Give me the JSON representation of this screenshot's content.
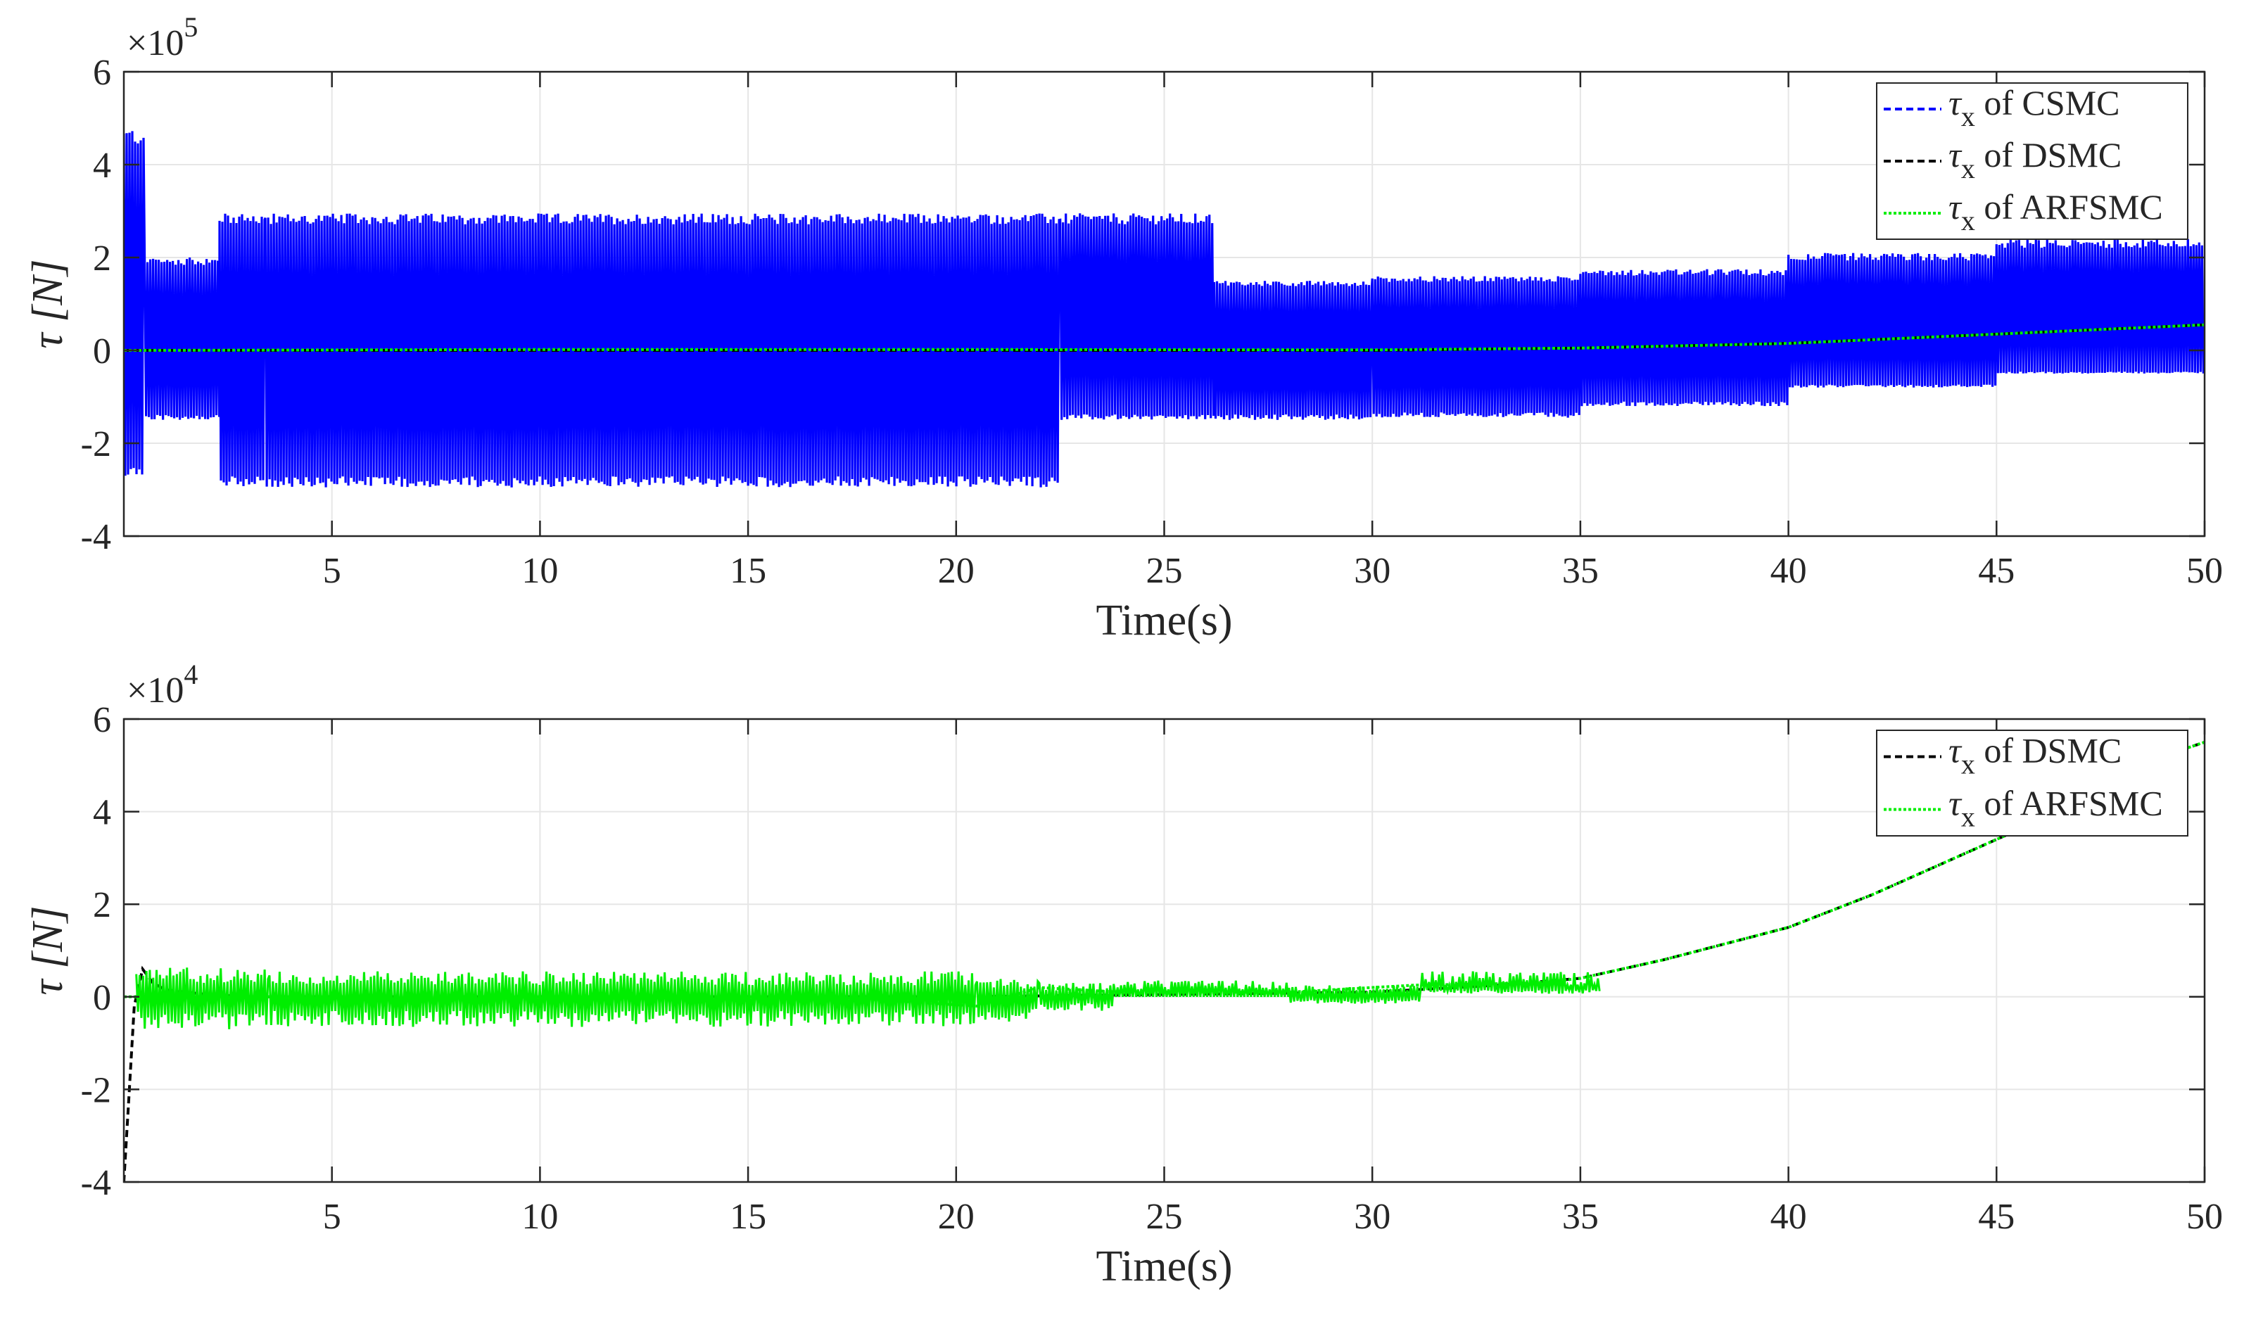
{
  "colors": {
    "csmc": "#0000ff",
    "dsmc": "#000000",
    "arfsmc": "#00ee00"
  },
  "chart_data": [
    {
      "type": "line",
      "xlabel": "Time(s)",
      "ylabel": "τ [N]",
      "y_exponent_label": "×10",
      "y_exponent_power": "5",
      "xlim": [
        0,
        50
      ],
      "ylim": [
        -4,
        6
      ],
      "x_ticks": [
        5,
        10,
        15,
        20,
        25,
        30,
        35,
        40,
        45,
        50
      ],
      "y_ticks": [
        -4,
        -2,
        0,
        2,
        4,
        6
      ],
      "grid": true,
      "legend_position": "top-right",
      "series": [
        {
          "name_symbol": "τ",
          "name_sub": "x",
          "name_rest": " of CSMC",
          "style": "dashed",
          "color": "#0000ff",
          "description": "high-amplitude switching signal",
          "bands": [
            {
              "x": [
                0,
                0.5
              ],
              "low": -2.7,
              "high": 4.8
            },
            {
              "x": [
                0.5,
                2.3
              ],
              "low": -1.5,
              "high": 2.0
            },
            {
              "x": [
                2.3,
                3.4
              ],
              "low": -2.95,
              "high": 2.95
            },
            {
              "x": [
                3.4,
                22.5
              ],
              "low": -2.95,
              "high": 2.95
            },
            {
              "x": [
                22.5,
                26.2
              ],
              "low": -1.5,
              "high": 2.95
            },
            {
              "x": [
                26.2,
                30
              ],
              "low": -1.5,
              "high": 1.5
            },
            {
              "x": [
                30,
                35
              ],
              "low": -1.45,
              "high": 1.6
            },
            {
              "x": [
                35,
                40
              ],
              "low": -1.2,
              "high": 1.75
            },
            {
              "x": [
                40,
                45
              ],
              "low": -0.8,
              "high": 2.1
            },
            {
              "x": [
                45,
                50
              ],
              "low": -0.5,
              "high": 2.4
            }
          ]
        },
        {
          "name_symbol": "τ",
          "name_sub": "x",
          "name_rest": " of DSMC",
          "style": "dashed",
          "color": "#000000",
          "x": [
            0,
            10,
            20,
            30,
            35,
            40,
            45,
            50
          ],
          "y": [
            0,
            0,
            0,
            0,
            0.05,
            0.15,
            0.35,
            0.55
          ]
        },
        {
          "name_symbol": "τ",
          "name_sub": "x",
          "name_rest": " of ARFSMC",
          "style": "dotted",
          "color": "#00ee00",
          "x": [
            0,
            10,
            20,
            30,
            35,
            40,
            45,
            50
          ],
          "y": [
            0,
            0.02,
            0.02,
            0.01,
            0.05,
            0.15,
            0.35,
            0.55
          ]
        }
      ]
    },
    {
      "type": "line",
      "xlabel": "Time(s)",
      "ylabel": "τ [N]",
      "y_exponent_label": "×10",
      "y_exponent_power": "4",
      "xlim": [
        0,
        50
      ],
      "ylim": [
        -4,
        6
      ],
      "x_ticks": [
        5,
        10,
        15,
        20,
        25,
        30,
        35,
        40,
        45,
        50
      ],
      "y_ticks": [
        -4,
        -2,
        0,
        2,
        4,
        6
      ],
      "grid": true,
      "legend_position": "top-right",
      "series": [
        {
          "name_symbol": "τ",
          "name_sub": "x",
          "name_rest": " of DSMC",
          "style": "dashed",
          "color": "#000000",
          "x": [
            0.0,
            0.1,
            0.25,
            0.45,
            0.7,
            1.0,
            1.5,
            2.0,
            3.0,
            5,
            10,
            20,
            30,
            33,
            35,
            37,
            40,
            42,
            44,
            46,
            48,
            49,
            50
          ],
          "y": [
            -4.0,
            -2.5,
            -0.2,
            0.6,
            0.3,
            0.15,
            0.1,
            0.05,
            0.0,
            0.0,
            0.0,
            0.0,
            0.1,
            0.25,
            0.4,
            0.8,
            1.5,
            2.2,
            3.0,
            3.8,
            4.7,
            5.2,
            5.5
          ]
        },
        {
          "name_symbol": "τ",
          "name_sub": "x",
          "name_rest": " of ARFSMC",
          "style": "dotted",
          "color": "#00ee00",
          "x": [
            0,
            3,
            10,
            17,
            20.5,
            22,
            24,
            28,
            31,
            34,
            35,
            37,
            40,
            42,
            44,
            46,
            48,
            49,
            50
          ],
          "y": [
            0,
            0,
            0,
            0,
            -0.2,
            0.2,
            0.1,
            0.1,
            0.25,
            0.3,
            0.4,
            0.8,
            1.5,
            2.2,
            3.0,
            3.8,
            4.7,
            5.2,
            5.5
          ],
          "bands": [
            {
              "x": [
                0.3,
                3.5
              ],
              "low": -0.7,
              "high": 0.65
            },
            {
              "x": [
                3.5,
                20.5
              ],
              "low": -0.65,
              "high": 0.55
            },
            {
              "x": [
                20.5,
                22.0
              ],
              "low": -0.55,
              "high": 0.4
            },
            {
              "x": [
                22.0,
                23.8
              ],
              "low": -0.3,
              "high": 0.3
            },
            {
              "x": [
                23.8,
                28.0
              ],
              "low": 0.0,
              "high": 0.35
            },
            {
              "x": [
                28.0,
                31.2
              ],
              "low": -0.15,
              "high": 0.25
            },
            {
              "x": [
                31.2,
                35.5
              ],
              "low": 0.15,
              "high": 0.55
            }
          ]
        }
      ]
    }
  ]
}
